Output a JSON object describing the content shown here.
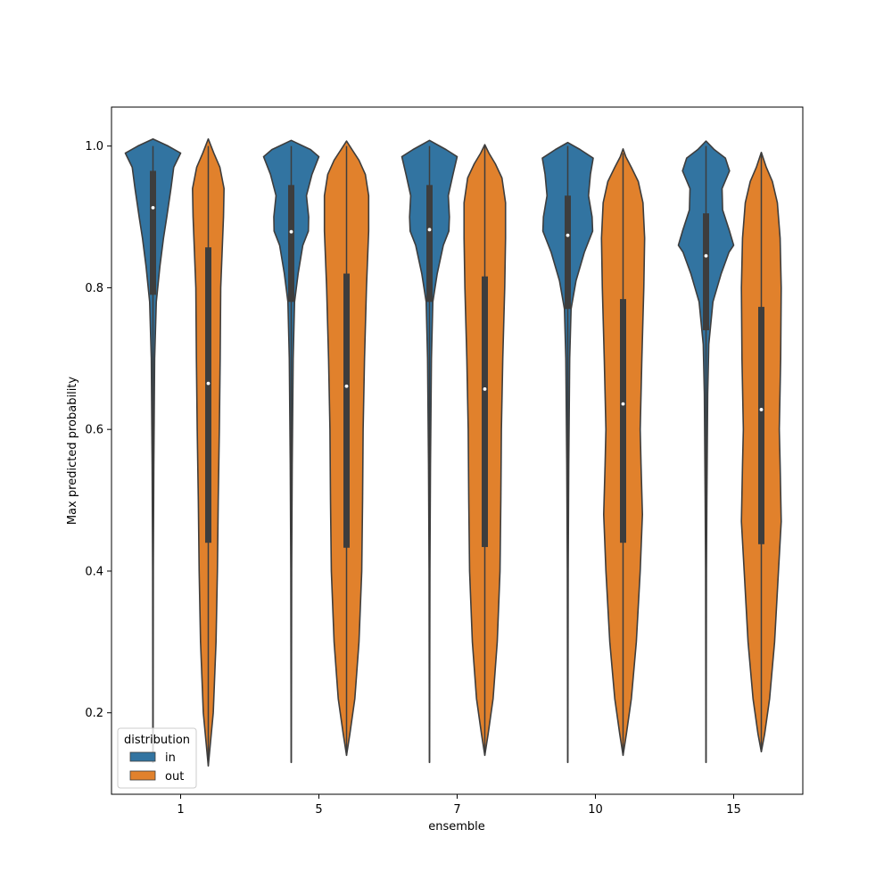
{
  "chart_data": {
    "type": "violin",
    "title": "",
    "xlabel": "ensemble",
    "ylabel": "Max predicted probability",
    "categories": [
      "1",
      "5",
      "7",
      "10",
      "15"
    ],
    "ylim": [
      0.085,
      1.055
    ],
    "y_ticks": [
      0.2,
      0.4,
      0.6,
      0.8,
      1.0
    ],
    "y_tick_labels": [
      "0.2",
      "0.4",
      "0.6",
      "0.8",
      "1.0"
    ],
    "grid": false,
    "legend": {
      "title": "distribution",
      "placement": "lower-left",
      "entries": [
        "in",
        "out"
      ]
    },
    "series": [
      {
        "name": "in",
        "color": "#3274a1",
        "stats": [
          {
            "min": 0.13,
            "max": 1.0,
            "q1": 0.79,
            "median": 0.913,
            "q3": 0.965,
            "whisker_low": 0.54,
            "whisker_high": 1.0
          },
          {
            "min": 0.13,
            "max": 1.0,
            "q1": 0.78,
            "median": 0.879,
            "q3": 0.945,
            "whisker_low": 0.55,
            "whisker_high": 1.0
          },
          {
            "min": 0.13,
            "max": 1.0,
            "q1": 0.78,
            "median": 0.882,
            "q3": 0.945,
            "whisker_low": 0.55,
            "whisker_high": 1.0
          },
          {
            "min": 0.13,
            "max": 1.0,
            "q1": 0.77,
            "median": 0.874,
            "q3": 0.93,
            "whisker_low": 0.545,
            "whisker_high": 1.0
          },
          {
            "min": 0.13,
            "max": 1.0,
            "q1": 0.74,
            "median": 0.845,
            "q3": 0.905,
            "whisker_low": 0.505,
            "whisker_high": 1.0
          }
        ],
        "density_profiles": [
          [
            [
              0.13,
              0.003
            ],
            [
              0.4,
              0.012
            ],
            [
              0.55,
              0.03
            ],
            [
              0.7,
              0.06
            ],
            [
              0.78,
              0.12
            ],
            [
              0.83,
              0.25
            ],
            [
              0.87,
              0.38
            ],
            [
              0.9,
              0.5
            ],
            [
              0.94,
              0.65
            ],
            [
              0.97,
              0.75
            ],
            [
              0.99,
              1.0
            ],
            [
              1.0,
              0.55
            ],
            [
              1.01,
              0.0
            ]
          ],
          [
            [
              0.13,
              0.003
            ],
            [
              0.4,
              0.015
            ],
            [
              0.55,
              0.035
            ],
            [
              0.7,
              0.07
            ],
            [
              0.78,
              0.12
            ],
            [
              0.82,
              0.25
            ],
            [
              0.86,
              0.42
            ],
            [
              0.88,
              0.62
            ],
            [
              0.9,
              0.63
            ],
            [
              0.93,
              0.55
            ],
            [
              0.96,
              0.75
            ],
            [
              0.985,
              1.0
            ],
            [
              0.995,
              0.7
            ],
            [
              1.008,
              0.0
            ]
          ],
          [
            [
              0.13,
              0.003
            ],
            [
              0.4,
              0.015
            ],
            [
              0.55,
              0.035
            ],
            [
              0.7,
              0.07
            ],
            [
              0.78,
              0.12
            ],
            [
              0.82,
              0.28
            ],
            [
              0.86,
              0.5
            ],
            [
              0.88,
              0.7
            ],
            [
              0.9,
              0.72
            ],
            [
              0.93,
              0.68
            ],
            [
              0.96,
              0.85
            ],
            [
              0.985,
              1.0
            ],
            [
              0.995,
              0.6
            ],
            [
              1.008,
              0.0
            ]
          ],
          [
            [
              0.13,
              0.003
            ],
            [
              0.4,
              0.015
            ],
            [
              0.55,
              0.035
            ],
            [
              0.7,
              0.07
            ],
            [
              0.77,
              0.12
            ],
            [
              0.81,
              0.3
            ],
            [
              0.85,
              0.6
            ],
            [
              0.88,
              0.9
            ],
            [
              0.9,
              0.88
            ],
            [
              0.93,
              0.75
            ],
            [
              0.96,
              0.82
            ],
            [
              0.983,
              0.92
            ],
            [
              0.995,
              0.45
            ],
            [
              1.005,
              0.0
            ]
          ],
          [
            [
              0.13,
              0.003
            ],
            [
              0.4,
              0.015
            ],
            [
              0.5,
              0.03
            ],
            [
              0.65,
              0.06
            ],
            [
              0.72,
              0.1
            ],
            [
              0.78,
              0.25
            ],
            [
              0.82,
              0.55
            ],
            [
              0.85,
              0.83
            ],
            [
              0.86,
              1.0
            ],
            [
              0.88,
              0.85
            ],
            [
              0.91,
              0.6
            ],
            [
              0.94,
              0.58
            ],
            [
              0.965,
              0.85
            ],
            [
              0.983,
              0.7
            ],
            [
              0.995,
              0.3
            ],
            [
              1.007,
              0.0
            ]
          ]
        ]
      },
      {
        "name": "out",
        "color": "#e1812c",
        "stats": [
          {
            "min": 0.125,
            "max": 1.0,
            "q1": 0.44,
            "median": 0.665,
            "q3": 0.857,
            "whisker_low": 0.13,
            "whisker_high": 1.0
          },
          {
            "min": 0.14,
            "max": 1.0,
            "q1": 0.433,
            "median": 0.661,
            "q3": 0.82,
            "whisker_low": 0.14,
            "whisker_high": 1.0
          },
          {
            "min": 0.14,
            "max": 1.0,
            "q1": 0.434,
            "median": 0.657,
            "q3": 0.816,
            "whisker_low": 0.14,
            "whisker_high": 1.0
          },
          {
            "min": 0.14,
            "max": 0.99,
            "q1": 0.44,
            "median": 0.636,
            "q3": 0.784,
            "whisker_low": 0.14,
            "whisker_high": 0.99
          },
          {
            "min": 0.145,
            "max": 0.99,
            "q1": 0.438,
            "median": 0.628,
            "q3": 0.773,
            "whisker_low": 0.145,
            "whisker_high": 0.99
          }
        ],
        "density_profiles": [
          [
            [
              0.125,
              0.0
            ],
            [
              0.15,
              0.06
            ],
            [
              0.2,
              0.18
            ],
            [
              0.3,
              0.28
            ],
            [
              0.4,
              0.33
            ],
            [
              0.5,
              0.36
            ],
            [
              0.6,
              0.4
            ],
            [
              0.7,
              0.43
            ],
            [
              0.8,
              0.45
            ],
            [
              0.85,
              0.5
            ],
            [
              0.9,
              0.55
            ],
            [
              0.94,
              0.57
            ],
            [
              0.97,
              0.42
            ],
            [
              0.99,
              0.2
            ],
            [
              1.01,
              0.0
            ]
          ],
          [
            [
              0.14,
              0.0
            ],
            [
              0.17,
              0.12
            ],
            [
              0.22,
              0.3
            ],
            [
              0.3,
              0.45
            ],
            [
              0.4,
              0.55
            ],
            [
              0.5,
              0.58
            ],
            [
              0.6,
              0.6
            ],
            [
              0.7,
              0.65
            ],
            [
              0.8,
              0.72
            ],
            [
              0.88,
              0.8
            ],
            [
              0.93,
              0.8
            ],
            [
              0.96,
              0.68
            ],
            [
              0.98,
              0.45
            ],
            [
              0.995,
              0.2
            ],
            [
              1.007,
              0.0
            ]
          ],
          [
            [
              0.14,
              0.0
            ],
            [
              0.17,
              0.12
            ],
            [
              0.22,
              0.3
            ],
            [
              0.3,
              0.45
            ],
            [
              0.4,
              0.55
            ],
            [
              0.5,
              0.58
            ],
            [
              0.6,
              0.6
            ],
            [
              0.7,
              0.65
            ],
            [
              0.8,
              0.72
            ],
            [
              0.87,
              0.75
            ],
            [
              0.92,
              0.75
            ],
            [
              0.955,
              0.62
            ],
            [
              0.975,
              0.38
            ],
            [
              0.99,
              0.15
            ],
            [
              1.002,
              0.0
            ]
          ],
          [
            [
              0.14,
              0.0
            ],
            [
              0.17,
              0.12
            ],
            [
              0.22,
              0.3
            ],
            [
              0.3,
              0.48
            ],
            [
              0.4,
              0.62
            ],
            [
              0.48,
              0.7
            ],
            [
              0.55,
              0.65
            ],
            [
              0.6,
              0.62
            ],
            [
              0.7,
              0.68
            ],
            [
              0.8,
              0.75
            ],
            [
              0.87,
              0.78
            ],
            [
              0.92,
              0.72
            ],
            [
              0.95,
              0.55
            ],
            [
              0.97,
              0.3
            ],
            [
              0.985,
              0.1
            ],
            [
              0.996,
              0.0
            ]
          ],
          [
            [
              0.145,
              0.0
            ],
            [
              0.17,
              0.12
            ],
            [
              0.22,
              0.3
            ],
            [
              0.3,
              0.48
            ],
            [
              0.4,
              0.62
            ],
            [
              0.47,
              0.72
            ],
            [
              0.55,
              0.68
            ],
            [
              0.6,
              0.65
            ],
            [
              0.7,
              0.7
            ],
            [
              0.8,
              0.72
            ],
            [
              0.87,
              0.68
            ],
            [
              0.92,
              0.58
            ],
            [
              0.95,
              0.4
            ],
            [
              0.97,
              0.18
            ],
            [
              0.991,
              0.0
            ]
          ]
        ]
      }
    ]
  }
}
